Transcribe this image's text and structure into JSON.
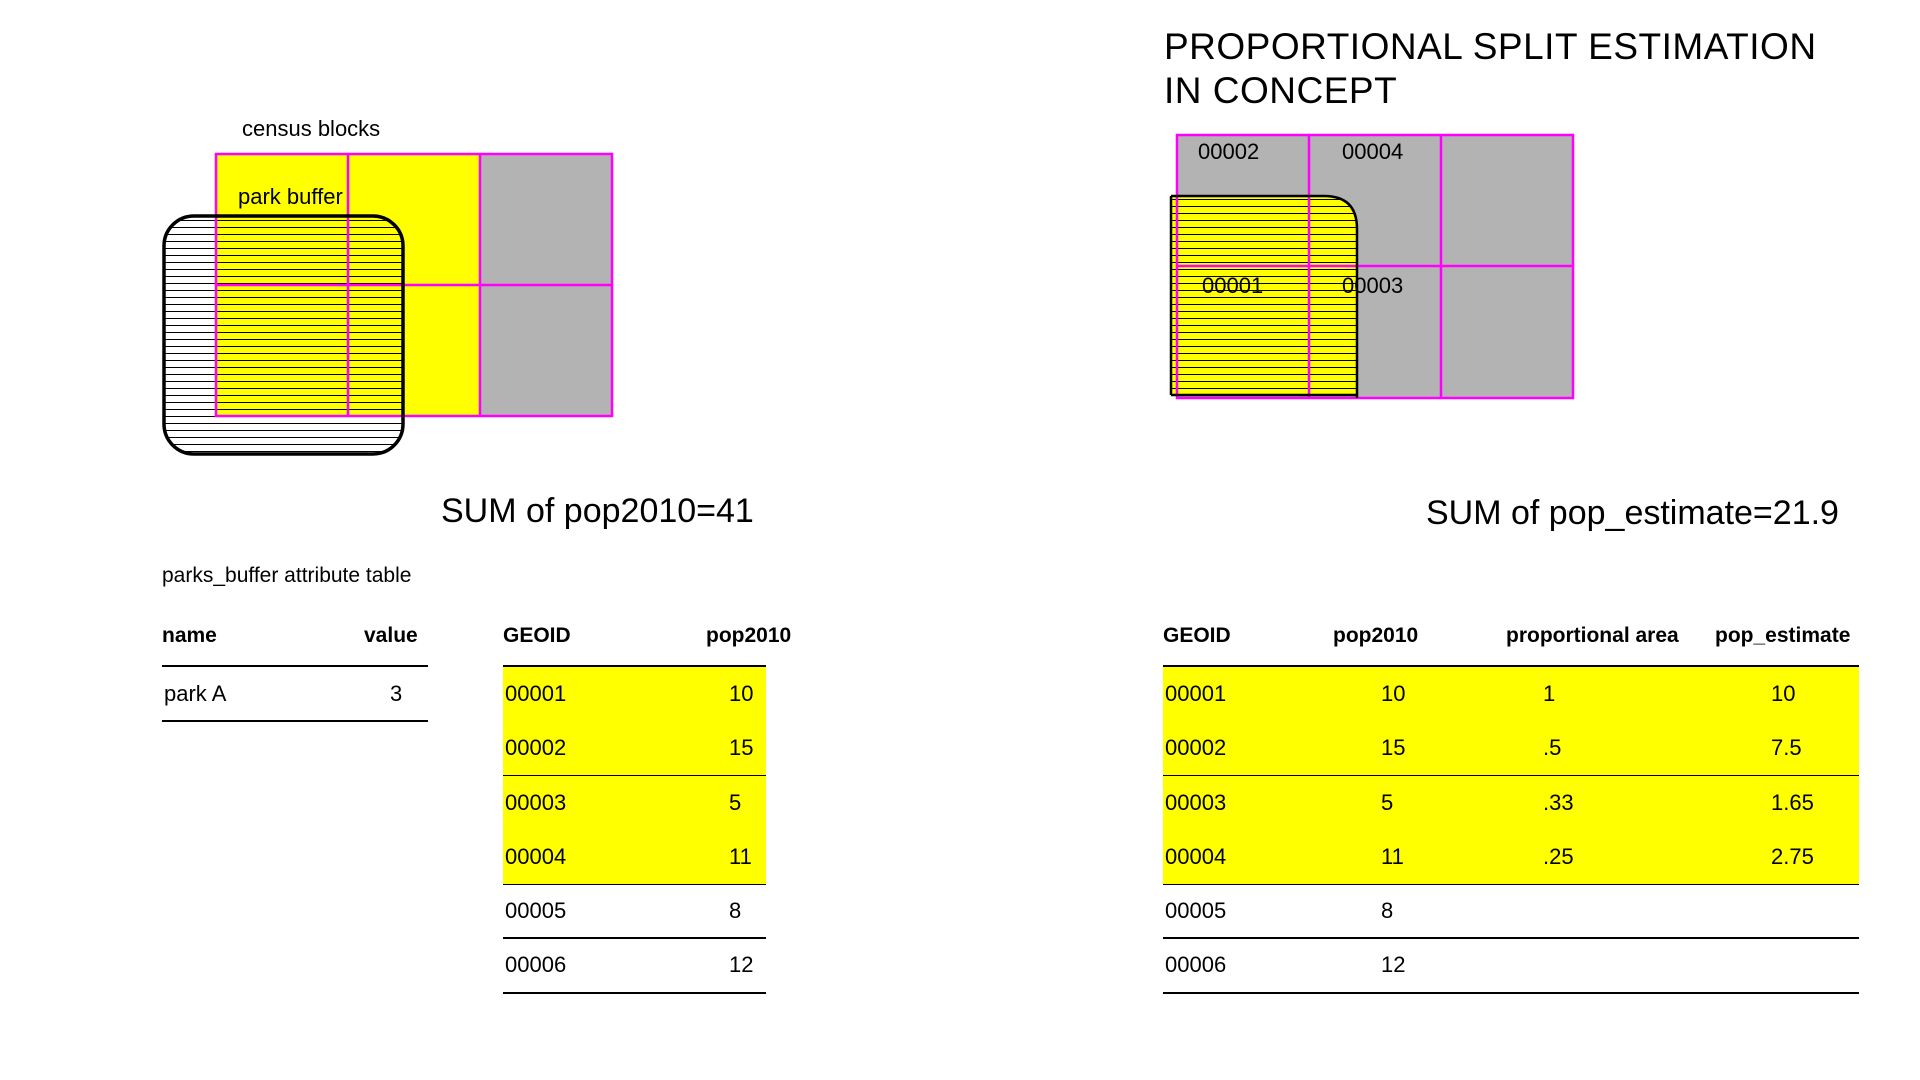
{
  "left_diagram": {
    "census_blocks_label": "census blocks",
    "park_buffer_label": "park buffer"
  },
  "right_diagram": {
    "title_line1": "PROPORTIONAL SPLIT ESTIMATION",
    "title_line2": "IN CONCEPT",
    "block_labels": [
      "00002",
      "00004",
      "00001",
      "00003"
    ]
  },
  "left_sum": "SUM of pop2010=41",
  "right_sum": "SUM of pop_estimate=21.9",
  "parks_table": {
    "caption": "parks_buffer attribute table",
    "headers": [
      "name",
      "value"
    ],
    "rows": [
      [
        "park A",
        "3"
      ]
    ]
  },
  "blocks_table": {
    "headers": [
      "GEOID",
      "pop2010"
    ],
    "rows": [
      [
        "00001",
        "10"
      ],
      [
        "00002",
        "15"
      ],
      [
        "00003",
        "5"
      ],
      [
        "00004",
        "11"
      ],
      [
        "00005",
        "8"
      ],
      [
        "00006",
        "12"
      ]
    ],
    "highlighted_rows": 4
  },
  "estimate_table": {
    "headers": [
      "GEOID",
      "pop2010",
      "proportional area",
      "pop_estimate"
    ],
    "rows": [
      [
        "00001",
        "10",
        "1",
        "10"
      ],
      [
        "00002",
        "15",
        ".5",
        "7.5"
      ],
      [
        "00003",
        "5",
        ".33",
        "1.65"
      ],
      [
        "00004",
        "11",
        ".25",
        "2.75"
      ],
      [
        "00005",
        "8",
        "",
        ""
      ],
      [
        "00006",
        "12",
        "",
        ""
      ]
    ],
    "highlighted_rows": 4
  },
  "colors": {
    "selected_block": "#ffff00",
    "unselected_block": "#b3b3b3",
    "block_outline": "#ff00ff",
    "buffer_outline": "#000000"
  }
}
